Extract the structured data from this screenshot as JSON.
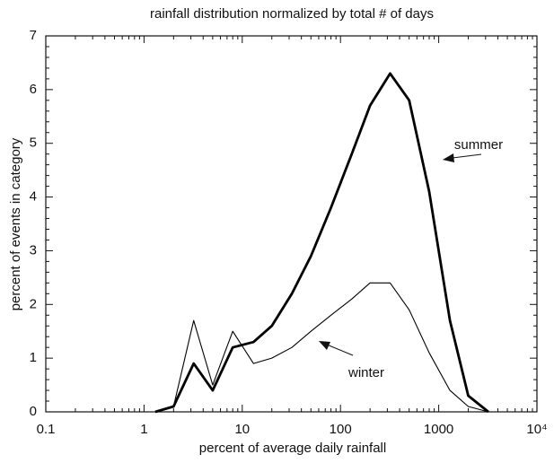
{
  "chart_data": {
    "type": "line",
    "title": "rainfall distribution normalized by total # of days",
    "x_label": "percent of average daily rainfall",
    "y_label": "percent of events in category",
    "x": [
      1.3,
      2,
      3.2,
      5,
      8,
      13,
      20,
      32,
      50,
      80,
      130,
      200,
      320,
      500,
      800,
      1300,
      2000,
      3200
    ],
    "series": [
      {
        "name": "summer",
        "color": "#000000",
        "values": [
          0,
          0.1,
          0.9,
          0.4,
          1.2,
          1.3,
          1.6,
          2.2,
          2.9,
          3.8,
          4.8,
          5.7,
          6.3,
          5.8,
          4.1,
          1.7,
          0.3,
          0
        ]
      },
      {
        "name": "winter",
        "color": "#000000",
        "values": [
          0,
          0.1,
          1.7,
          0.5,
          1.5,
          0.9,
          1.0,
          1.2,
          1.5,
          1.8,
          2.1,
          2.4,
          2.4,
          1.9,
          1.1,
          0.4,
          0.1,
          0
        ]
      }
    ],
    "xlog": true,
    "xlim": [
      0.1,
      10000
    ],
    "xticks": [
      0.1,
      1,
      10,
      100,
      1000,
      {
        "value": 10000,
        "label": "10⁴"
      }
    ],
    "ylim": [
      0,
      7
    ],
    "yticks": [
      0,
      1,
      2,
      3,
      4,
      5,
      6,
      7
    ]
  }
}
